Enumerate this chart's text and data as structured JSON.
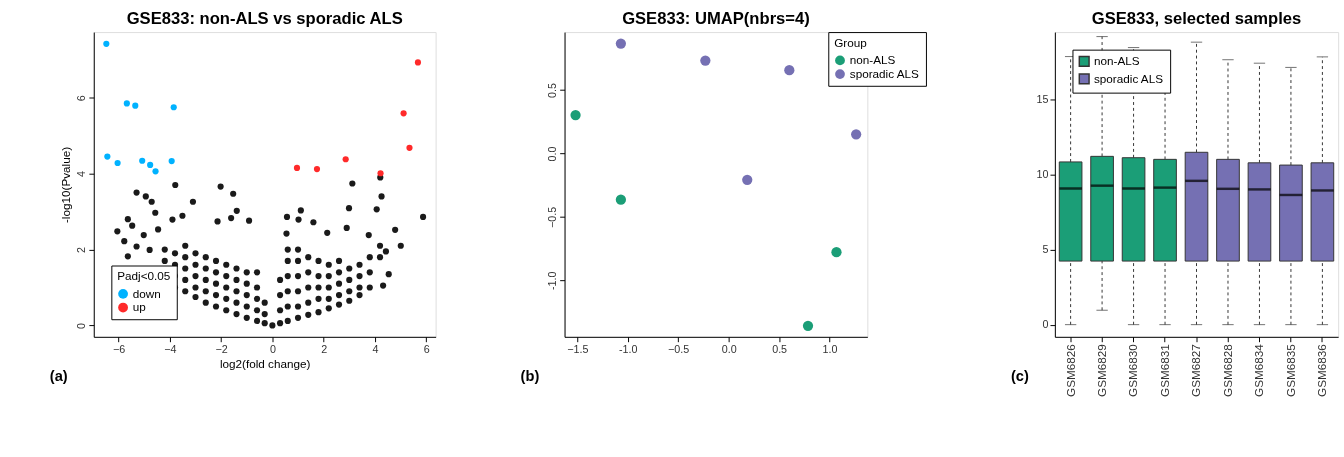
{
  "chart_data": [
    {
      "type": "scatter",
      "title": "GSE833: non-ALS vs sporadic ALS",
      "xlabel": "log2(fold change)",
      "ylabel": "-log10(Pvalue)",
      "legend_title": "Padj<0.05",
      "legend": "bottom left",
      "grid": false,
      "marker": "circle",
      "annotations": [
        "(a)"
      ],
      "xlim": [
        -6.97,
        6.37
      ],
      "xticks": [
        -6,
        -4,
        -2,
        0,
        2,
        4,
        6
      ],
      "ylim": [
        -0.3,
        7.73
      ],
      "yticks": [
        0,
        2,
        4,
        6
      ],
      "series": [
        {
          "color": "#1a1a1a",
          "x": [
            5.88,
            4.79,
            5.01,
            4.54,
            4.32,
            4.21,
            4.26,
            4.07,
            3.12,
            2.99,
            2.9,
            2.14,
            1.6,
            1.11,
            1.02,
            0.57,
            0.55,
            4.43,
            3.76,
            -3.79,
            -5.3,
            -4.94,
            -4.71,
            -4.57,
            -5.64,
            -5.47,
            -6.05,
            -5.78,
            -5.64,
            -5.3,
            -5.02,
            -4.79,
            -4.46,
            -3.9,
            -3.51,
            -3.1,
            -2.02,
            -1.53,
            -1.39,
            -1.61,
            -0.91,
            -2.14,
            -4.2,
            -4.2,
            -3.8,
            -3.8,
            -3.8,
            -3.8,
            -3.4,
            -3.4,
            -3.4,
            -3.4,
            -3.4,
            -3.0,
            -3.0,
            -3.0,
            -3.0,
            -3.0,
            -2.6,
            -2.6,
            -2.6,
            -2.6,
            -2.6,
            -2.2,
            -2.2,
            -2.2,
            -2.2,
            -2.2,
            -1.8,
            -1.8,
            -1.8,
            -1.8,
            -1.8,
            -1.4,
            -1.4,
            -1.4,
            -1.4,
            -1.4,
            -1.0,
            -1.0,
            -1.0,
            -1.0,
            -1.0,
            -0.6,
            -0.6,
            -0.6,
            -0.6,
            -0.6,
            -0.3,
            -0.3,
            -0.3,
            0,
            0.3,
            0.3,
            0.3,
            0.3,
            0.6,
            0.6,
            0.6,
            0.6,
            0.6,
            0.6,
            1.0,
            1.0,
            1.0,
            1.0,
            1.0,
            1.0,
            1.4,
            1.4,
            1.4,
            1.4,
            1.4,
            1.8,
            1.8,
            1.8,
            1.8,
            1.8,
            2.2,
            2.2,
            2.2,
            2.2,
            2.2,
            2.6,
            2.6,
            2.6,
            2.6,
            2.6,
            3.0,
            3.0,
            3.0,
            3.0,
            3.4,
            3.4,
            3.4,
            3.4,
            3.8,
            3.8,
            3.8,
            4.2,
            4.2
          ],
          "values": [
            2.86,
            2.52,
            2.1,
            1.35,
            1.05,
            3.9,
            3.4,
            3.06,
            3.74,
            3.09,
            2.57,
            2.44,
            2.72,
            3.03,
            2.79,
            2.86,
            2.42,
            1.95,
            2.38,
            3.7,
            3.5,
            3.4,
            3.26,
            2.97,
            2.8,
            2.63,
            2.48,
            2.22,
            1.82,
            2.08,
            2.38,
            1.99,
            2.53,
            2.79,
            2.89,
            3.26,
            3.66,
            3.47,
            3.02,
            2.83,
            2.76,
            2.74,
            1.7,
            2.0,
            1.0,
            1.3,
            1.6,
            1.9,
            0.9,
            1.2,
            1.5,
            1.8,
            2.1,
            0.75,
            1.0,
            1.3,
            1.6,
            1.9,
            0.6,
            0.9,
            1.2,
            1.5,
            1.8,
            0.5,
            0.8,
            1.1,
            1.4,
            1.7,
            0.4,
            0.7,
            1.0,
            1.3,
            1.6,
            0.3,
            0.6,
            0.9,
            1.2,
            1.5,
            0.2,
            0.5,
            0.8,
            1.1,
            1.4,
            0.12,
            0.4,
            0.7,
            1.0,
            1.4,
            0.06,
            0.3,
            0.6,
            0,
            0.06,
            0.4,
            0.8,
            1.2,
            0.12,
            0.5,
            0.9,
            1.3,
            1.7,
            2.0,
            0.2,
            0.5,
            0.9,
            1.3,
            1.7,
            2.0,
            0.28,
            0.6,
            1.0,
            1.4,
            1.8,
            0.35,
            0.7,
            1.0,
            1.3,
            1.7,
            0.45,
            0.7,
            1.0,
            1.3,
            1.6,
            0.55,
            0.8,
            1.1,
            1.4,
            1.7,
            0.65,
            0.9,
            1.2,
            1.5,
            0.8,
            1.0,
            1.3,
            1.6,
            1.0,
            1.4,
            1.8,
            1.8,
            2.1
          ]
        },
        {
          "name": "down",
          "color": "#00b2ff",
          "x": [
            -6.48,
            -6.44,
            -6.04,
            -5.68,
            -5.35,
            -5.08,
            -4.77,
            -4.56,
            -3.93,
            -3.85
          ],
          "values": [
            7.42,
            4.45,
            4.28,
            5.85,
            5.79,
            4.34,
            4.23,
            4.06,
            4.33,
            5.75
          ]
        },
        {
          "name": "up",
          "color": "#ff2a2a",
          "x": [
            0.96,
            1.74,
            2.86,
            4.22,
            5.12,
            5.35,
            5.68
          ],
          "values": [
            4.15,
            4.12,
            4.38,
            4.01,
            5.59,
            4.68,
            6.93
          ]
        }
      ]
    },
    {
      "type": "scatter",
      "title": "GSE833: UMAP(nbrs=4)",
      "legend_title": "Group",
      "legend": "top right",
      "grid": false,
      "marker": "circle",
      "annotations": [
        "(b)"
      ],
      "xlim": [
        -1.626,
        1.374
      ],
      "xticks": [
        -1.5,
        {
          "value": -1,
          "label": "-1.0"
        },
        -0.5,
        {
          "value": 0,
          "label": "0.0"
        },
        0.5,
        {
          "value": 1,
          "label": "1.0"
        }
      ],
      "ylim": [
        -1.446,
        0.957
      ],
      "yticks": [
        {
          "value": -1,
          "label": "-1.0"
        },
        -0.5,
        {
          "value": 0,
          "label": "0.0"
        },
        0.5
      ],
      "series": [
        {
          "name": "non-ALS",
          "color": "#1b9e77",
          "x": [
            -1.517,
            -1.068,
            1.068,
            0.786
          ],
          "values": [
            0.303,
            -0.365,
            -0.779,
            -1.359
          ]
        },
        {
          "name": "sporadic ALS",
          "color": "#7570b3",
          "x": [
            -1.068,
            -0.231,
            0.601,
            1.263,
            0.184
          ],
          "values": [
            0.866,
            0.732,
            0.657,
            0.151,
            -0.208
          ]
        }
      ]
    },
    {
      "type": "box",
      "title": "GSE833, selected samples",
      "legend": "top left",
      "grid": false,
      "annotations": [
        "(c)"
      ],
      "categories": [
        "GSM6826",
        "GSM6829",
        "GSM6830",
        "GSM6831",
        "GSM6827",
        "GSM6828",
        "GSM6834",
        "GSM6835",
        "GSM6836"
      ],
      "ylim": [
        -0.81,
        19.47
      ],
      "yticks": [
        0,
        5,
        10,
        15
      ],
      "series": [
        {
          "name": "non-ALS",
          "color": "#1b9e77",
          "boxes": [
            {
              "low": 0,
              "q1": 4.23,
              "median": 9.06,
              "q3": 10.83,
              "high": 17.84
            },
            {
              "low": 0.96,
              "q1": 4.23,
              "median": 9.25,
              "q3": 11.2,
              "high": 19.17
            },
            {
              "low": 0,
              "q1": 4.23,
              "median": 9.06,
              "q3": 11.11,
              "high": 18.44
            },
            {
              "low": 0,
              "q1": 4.23,
              "median": 9.12,
              "q3": 11.0,
              "high": 18.2
            },
            null,
            null,
            null,
            null,
            null
          ]
        },
        {
          "name": "sporadic ALS",
          "color": "#7570b3",
          "boxes": [
            null,
            null,
            null,
            null,
            {
              "low": 0,
              "q1": 4.23,
              "median": 9.57,
              "q3": 11.47,
              "high": 18.8
            },
            {
              "low": 0,
              "q1": 4.23,
              "median": 9.04,
              "q3": 11.0,
              "high": 17.63
            },
            {
              "low": 0,
              "q1": 4.23,
              "median": 9.0,
              "q3": 10.77,
              "high": 17.4
            },
            {
              "low": 0,
              "q1": 4.23,
              "median": 8.63,
              "q3": 10.62,
              "high": 17.12
            },
            {
              "low": 0,
              "q1": 4.23,
              "median": 8.93,
              "q3": 10.77,
              "high": 17.82
            }
          ]
        }
      ]
    }
  ]
}
